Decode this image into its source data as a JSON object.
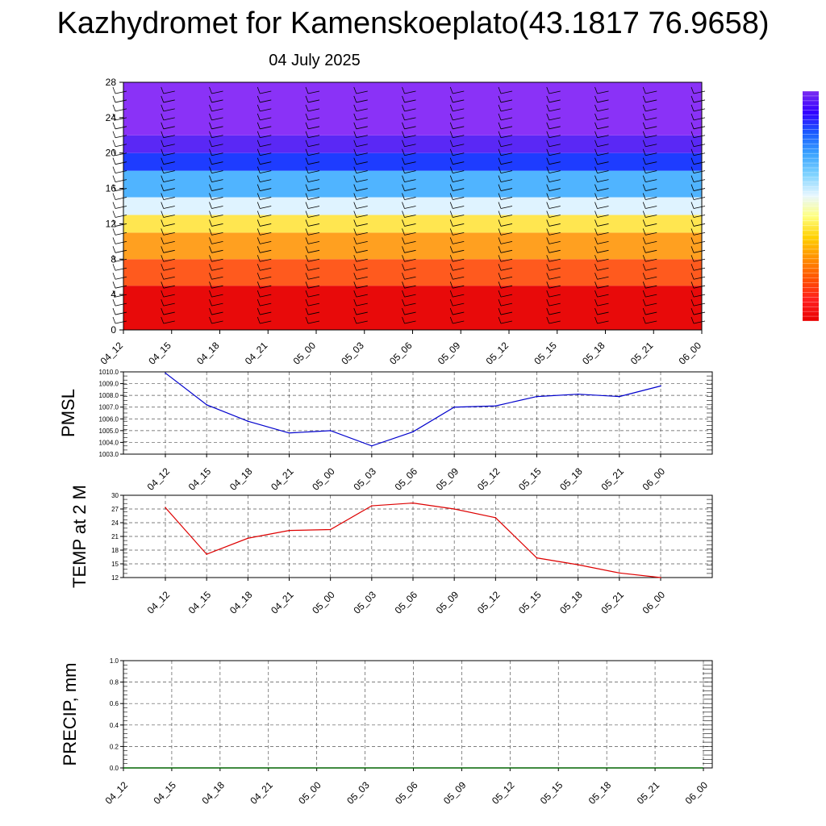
{
  "header": {
    "title": "Kazhydromet for Kamenskoeplato(43.1817 76.9658)",
    "date": "04 July 2025"
  },
  "colors": {
    "pmsl_line": "#0000cc",
    "temp_line": "#dd0000",
    "precip_line": "#006400",
    "colorbar": [
      "#7b2cf0",
      "#3300ff",
      "#1a5cff",
      "#3aa3ff",
      "#7fd3ff",
      "#e8f7ff",
      "#ffff80",
      "#ffd000",
      "#ff9000",
      "#ff5000",
      "#ff1f1f",
      "#e80000"
    ]
  },
  "chart_data": [
    {
      "type": "heatmap",
      "title": "",
      "xlabel": "",
      "ylabel": "",
      "x_ticks": [
        "04_12",
        "04_15",
        "04_18",
        "04_21",
        "05_00",
        "05_03",
        "05_06",
        "05_09",
        "05_12",
        "05_15",
        "05_18",
        "05_21",
        "06_00"
      ],
      "y_ticks": [
        "0",
        "4",
        "8",
        "12",
        "16",
        "20",
        "24",
        "28"
      ],
      "ylim": [
        0,
        28
      ],
      "bands": [
        {
          "from": 0,
          "to": 5,
          "color": "#e80a0a"
        },
        {
          "from": 5,
          "to": 8,
          "color": "#ff5a1e"
        },
        {
          "from": 8,
          "to": 11,
          "color": "#ffa020"
        },
        {
          "from": 11,
          "to": 13,
          "color": "#ffe650"
        },
        {
          "from": 13,
          "to": 15,
          "color": "#dff3ff"
        },
        {
          "from": 15,
          "to": 18,
          "color": "#50b4ff"
        },
        {
          "from": 18,
          "to": 20,
          "color": "#1e3cff"
        },
        {
          "from": 20,
          "to": 22,
          "color": "#5a28f5"
        },
        {
          "from": 22,
          "to": 28,
          "color": "#8a32f7"
        }
      ],
      "overlay": "wind barbs"
    },
    {
      "type": "line",
      "ylabel": "PMSL",
      "categories": [
        "04_12",
        "04_15",
        "04_18",
        "04_21",
        "05_00",
        "05_03",
        "05_06",
        "05_09",
        "05_12",
        "05_15",
        "05_18",
        "05_21",
        "06_00"
      ],
      "ylim": [
        1003.0,
        1010.0
      ],
      "y_ticks": [
        "1003.0",
        "1004.0",
        "1005.0",
        "1006.0",
        "1007.0",
        "1008.0",
        "1009.0",
        "1010.0"
      ],
      "series": [
        {
          "values": [
            1009.9,
            1007.2,
            1005.8,
            1004.8,
            1005.0,
            1003.7,
            1004.9,
            1007.0,
            1007.1,
            1007.9,
            1008.1,
            1007.9,
            1008.8
          ]
        }
      ],
      "grid": true
    },
    {
      "type": "line",
      "ylabel": "TEMP at 2 M",
      "categories": [
        "04_12",
        "04_15",
        "04_18",
        "04_21",
        "05_00",
        "05_03",
        "05_06",
        "05_09",
        "05_12",
        "05_15",
        "05_18",
        "05_21",
        "06_00"
      ],
      "ylim": [
        12,
        30
      ],
      "y_ticks": [
        "12",
        "15",
        "18",
        "21",
        "24",
        "27",
        "30"
      ],
      "series": [
        {
          "values": [
            27.3,
            17.1,
            20.6,
            22.3,
            22.5,
            27.7,
            28.3,
            27.0,
            25.1,
            16.3,
            14.8,
            13.0,
            12.0
          ]
        }
      ],
      "grid": true
    },
    {
      "type": "line",
      "ylabel": "PRECIP, mm",
      "categories": [
        "04_12",
        "04_15",
        "04_18",
        "04_21",
        "05_00",
        "05_03",
        "05_06",
        "05_09",
        "05_12",
        "05_15",
        "05_18",
        "05_21",
        "06_00"
      ],
      "ylim": [
        0.0,
        1.0
      ],
      "y_ticks": [
        "0.0",
        "0.2",
        "0.4",
        "0.6",
        "0.8",
        "1.0"
      ],
      "series": [
        {
          "values": [
            0,
            0,
            0,
            0,
            0,
            0,
            0,
            0,
            0,
            0,
            0,
            0,
            0
          ]
        }
      ],
      "grid": true
    }
  ]
}
